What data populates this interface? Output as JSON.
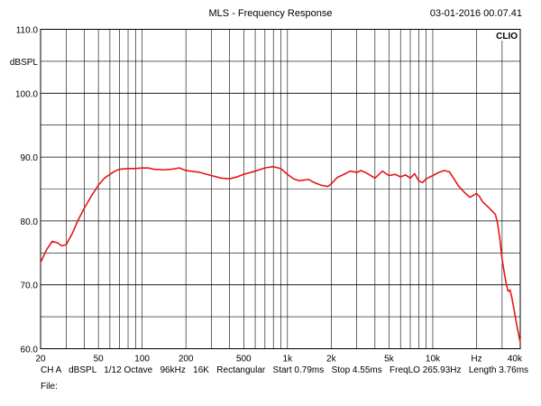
{
  "title": "MLS - Frequency Response",
  "timestamp": "03-01-2016 00.07.41",
  "brand": "CLIO",
  "footer": {
    "line1": "CH A   dBSPL   1/12 Octave   96kHz   16K   Rectangular   Start 0.79ms   Stop 4.55ms   FreqLO 265.93Hz   Length 3.76ms",
    "line2": "File:"
  },
  "chart_data": {
    "type": "line",
    "x_scale": "log",
    "xlim": [
      20,
      40000
    ],
    "ylim": [
      60,
      110
    ],
    "ylabel": "dBSPL",
    "xunit": "Hz",
    "grid": true,
    "y_ticks": [
      {
        "value": 110,
        "label": "110.0"
      },
      {
        "value": 100,
        "label": "100.0"
      },
      {
        "value": 90,
        "label": "90.0"
      },
      {
        "value": 80,
        "label": "80.0"
      },
      {
        "value": 70,
        "label": "70.0"
      },
      {
        "value": 60,
        "label": "60.0"
      }
    ],
    "x_ticks": [
      {
        "value": 20,
        "label": "20"
      },
      {
        "value": 50,
        "label": "50"
      },
      {
        "value": 100,
        "label": "100"
      },
      {
        "value": 200,
        "label": "200"
      },
      {
        "value": 500,
        "label": "500"
      },
      {
        "value": 1000,
        "label": "1k"
      },
      {
        "value": 2000,
        "label": "2k"
      },
      {
        "value": 5000,
        "label": "5k"
      },
      {
        "value": 10000,
        "label": "10k"
      },
      {
        "value": 20000,
        "label": "Hz"
      },
      {
        "value": 40000,
        "label": "40k"
      }
    ],
    "series": [
      {
        "color": "#e8141a",
        "points": [
          [
            20,
            73.5
          ],
          [
            22,
            75.5
          ],
          [
            24,
            76.8
          ],
          [
            26,
            76.6
          ],
          [
            28,
            76.1
          ],
          [
            30,
            76.3
          ],
          [
            33,
            78
          ],
          [
            36,
            80
          ],
          [
            40,
            82
          ],
          [
            45,
            84
          ],
          [
            50,
            85.6
          ],
          [
            55,
            86.7
          ],
          [
            60,
            87.3
          ],
          [
            65,
            87.8
          ],
          [
            70,
            88.1
          ],
          [
            80,
            88.2
          ],
          [
            90,
            88.2
          ],
          [
            100,
            88.3
          ],
          [
            110,
            88.3
          ],
          [
            120,
            88.1
          ],
          [
            140,
            88
          ],
          [
            160,
            88.1
          ],
          [
            180,
            88.3
          ],
          [
            200,
            87.9
          ],
          [
            250,
            87.6
          ],
          [
            300,
            87.1
          ],
          [
            350,
            86.7
          ],
          [
            400,
            86.6
          ],
          [
            450,
            86.9
          ],
          [
            500,
            87.3
          ],
          [
            600,
            87.8
          ],
          [
            700,
            88.3
          ],
          [
            800,
            88.5
          ],
          [
            900,
            88.2
          ],
          [
            1000,
            87.3
          ],
          [
            1100,
            86.6
          ],
          [
            1200,
            86.3
          ],
          [
            1300,
            86.4
          ],
          [
            1400,
            86.5
          ],
          [
            1500,
            86.1
          ],
          [
            1700,
            85.6
          ],
          [
            1900,
            85.4
          ],
          [
            2000,
            85.8
          ],
          [
            2200,
            86.8
          ],
          [
            2500,
            87.4
          ],
          [
            2700,
            87.8
          ],
          [
            3000,
            87.6
          ],
          [
            3200,
            87.9
          ],
          [
            3500,
            87.5
          ],
          [
            4000,
            86.7
          ],
          [
            4500,
            87.8
          ],
          [
            5000,
            87.1
          ],
          [
            5500,
            87.3
          ],
          [
            6000,
            86.9
          ],
          [
            6500,
            87.2
          ],
          [
            7000,
            86.7
          ],
          [
            7500,
            87.4
          ],
          [
            8000,
            86.3
          ],
          [
            8500,
            86
          ],
          [
            9000,
            86.6
          ],
          [
            10000,
            87.1
          ],
          [
            11000,
            87.6
          ],
          [
            12000,
            87.9
          ],
          [
            13000,
            87.7
          ],
          [
            14000,
            86.6
          ],
          [
            15000,
            85.5
          ],
          [
            16000,
            84.8
          ],
          [
            17000,
            84.2
          ],
          [
            18000,
            83.7
          ],
          [
            19000,
            84
          ],
          [
            20000,
            84.3
          ],
          [
            21000,
            83.8
          ],
          [
            22000,
            83
          ],
          [
            24000,
            82.2
          ],
          [
            26000,
            81.4
          ],
          [
            27000,
            81
          ],
          [
            28000,
            79.5
          ],
          [
            29000,
            77
          ],
          [
            30000,
            74
          ],
          [
            31000,
            72
          ],
          [
            32000,
            70.2
          ],
          [
            33000,
            69
          ],
          [
            34000,
            69.2
          ],
          [
            35000,
            68
          ],
          [
            36000,
            66.5
          ],
          [
            38000,
            63.5
          ],
          [
            40000,
            61
          ]
        ]
      }
    ]
  }
}
